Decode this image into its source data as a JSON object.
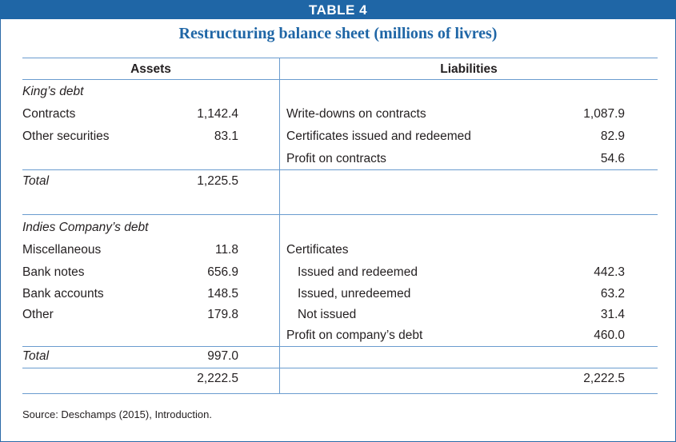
{
  "table_label": "TABLE 4",
  "title": "Restructuring balance sheet (millions of livres)",
  "columns": {
    "assets": "Assets",
    "liabilities": "Liabilities"
  },
  "kings_debt": {
    "heading": "King’s debt",
    "assets": [
      {
        "label": "Contracts",
        "value": "1,142.4"
      },
      {
        "label": "Other securities",
        "value": "83.1"
      }
    ],
    "liabilities": [
      {
        "label": "Write-downs on contracts",
        "value": "1,087.9"
      },
      {
        "label": "Certificates issued and redeemed",
        "value": "82.9"
      },
      {
        "label": "Profit on contracts",
        "value": "54.6"
      }
    ],
    "total_label": "Total",
    "total_value": "1,225.5"
  },
  "indies_debt": {
    "heading": "Indies Company’s debt",
    "assets": [
      {
        "label": "Miscellaneous",
        "value": "11.8"
      },
      {
        "label": "Bank notes",
        "value": "656.9"
      },
      {
        "label": "Bank accounts",
        "value": "148.5"
      },
      {
        "label": "Other",
        "value": "179.8"
      }
    ],
    "liabilities_heading": "Certificates",
    "liabilities": [
      {
        "label": "Issued and redeemed",
        "value": "442.3"
      },
      {
        "label": "Issued, unredeemed",
        "value": "63.2"
      },
      {
        "label": "Not issued",
        "value": "31.4"
      },
      {
        "label": "Profit on company’s debt",
        "value": "460.0"
      }
    ],
    "total_label": "Total",
    "total_value": "997.0"
  },
  "grand_total": {
    "assets": "2,222.5",
    "liabilities": "2,222.5"
  },
  "source": "Source: Deschamps (2015), Introduction."
}
